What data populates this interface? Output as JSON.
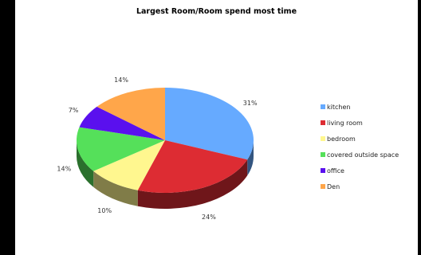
{
  "chart_data": {
    "type": "pie",
    "title": "Largest Room/Room spend most time",
    "slices": [
      {
        "label": "kitchen",
        "value": 31,
        "display": "31%",
        "color": "#66aaff"
      },
      {
        "label": "living room",
        "value": 24,
        "display": "24%",
        "color": "#dd2c33"
      },
      {
        "label": "bedroom",
        "value": 10,
        "display": "10%",
        "color": "#fff78f"
      },
      {
        "label": "covered outside space",
        "value": 14,
        "display": "14%",
        "color": "#55e05a"
      },
      {
        "label": "office",
        "value": 7,
        "display": "7%",
        "color": "#5a10ee"
      },
      {
        "label": "Den",
        "value": 14,
        "display": "14%",
        "color": "#ffa64a"
      }
    ],
    "legend_position": "right",
    "three_d": true
  }
}
